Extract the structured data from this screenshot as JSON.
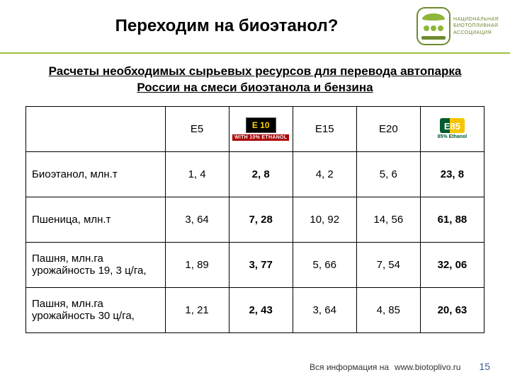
{
  "title": "Переходим на биоэтанол?",
  "subtitle": "Расчеты необходимых сырьевых ресурсов для перевода автопарка России на смеси биоэтанола и бензина",
  "logo": {
    "l1": "Национальная",
    "l2": "Биотопливная",
    "l3": "Ассоциация"
  },
  "table": {
    "columns": [
      {
        "label": "Е5",
        "type": "text"
      },
      {
        "label_top": "E 10",
        "label_bottom": "WITH 10% ETHANOL",
        "type": "badge-e10"
      },
      {
        "label": "Е15",
        "type": "text"
      },
      {
        "label": "Е20",
        "type": "text"
      },
      {
        "label_top": "E85",
        "label_bottom": "85% Ethanol",
        "type": "badge-e85"
      }
    ],
    "rows": [
      {
        "label": "Биоэтанол, млн.т",
        "values": [
          "1, 4",
          "2, 8",
          "4, 2",
          "5, 6",
          "23, 8"
        ]
      },
      {
        "label": "Пшеница, млн.т",
        "values": [
          "3, 64",
          "7, 28",
          "10, 92",
          "14, 56",
          "61, 88"
        ]
      },
      {
        "label": "Пашня, млн.га\nурожайность 19, 3 ц/га,",
        "values": [
          "1, 89",
          "3, 77",
          "5, 66",
          "7, 54",
          "32, 06"
        ]
      },
      {
        "label": "Пашня, млн.га\nурожайность 30 ц/га,",
        "values": [
          "1, 21",
          "2, 43",
          "3, 64",
          "4, 85",
          "20, 63"
        ]
      }
    ],
    "bold_cols": [
      1,
      4
    ]
  },
  "footer": {
    "caption": "Вся информация на",
    "url": "www.biotoplivo.ru",
    "page": "15"
  }
}
